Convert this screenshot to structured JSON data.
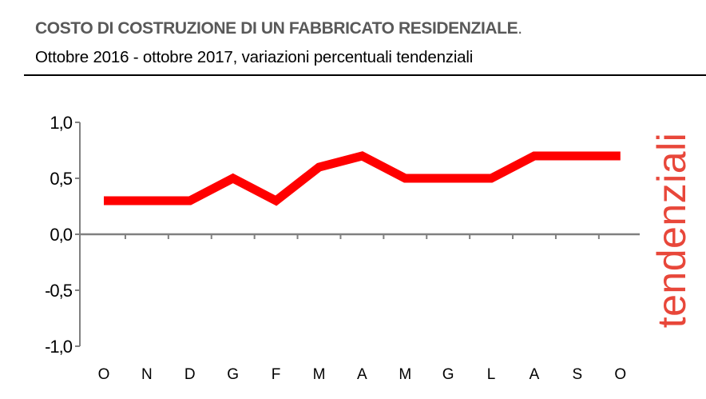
{
  "header": {
    "title": "COSTO DI COSTRUZIONE DI UN FABBRICATO RESIDENZIALE",
    "title_period": ".",
    "subtitle": "Ottobre 2016 - ottobre 2017, variazioni percentuali tendenziali"
  },
  "side_label": "tendenziali",
  "colors": {
    "line": "#ff0000",
    "side_label": "#e8473a",
    "axis": "#808080",
    "title": "#595959"
  },
  "chart_data": {
    "type": "line",
    "title": "COSTO DI COSTRUZIONE DI UN FABBRICATO RESIDENZIALE",
    "subtitle": "Ottobre 2016 - ottobre 2017, variazioni percentuali tendenziali",
    "xlabel": "",
    "ylabel": "tendenziali",
    "categories": [
      "O",
      "N",
      "D",
      "G",
      "F",
      "M",
      "A",
      "M",
      "G",
      "L",
      "A",
      "S",
      "O"
    ],
    "series": [
      {
        "values": [
          0.3,
          0.3,
          0.3,
          0.5,
          0.3,
          0.6,
          0.7,
          0.5,
          0.5,
          0.5,
          0.7,
          0.7,
          0.7
        ]
      }
    ],
    "ylim": [
      -1.0,
      1.0
    ],
    "yticks": [
      1.0,
      0.5,
      0.0,
      -0.5,
      -1.0
    ],
    "ytick_labels": [
      "1,0",
      "0,5",
      "0,0",
      "-0,5",
      "-1,0"
    ],
    "grid": false,
    "legend": "none"
  }
}
